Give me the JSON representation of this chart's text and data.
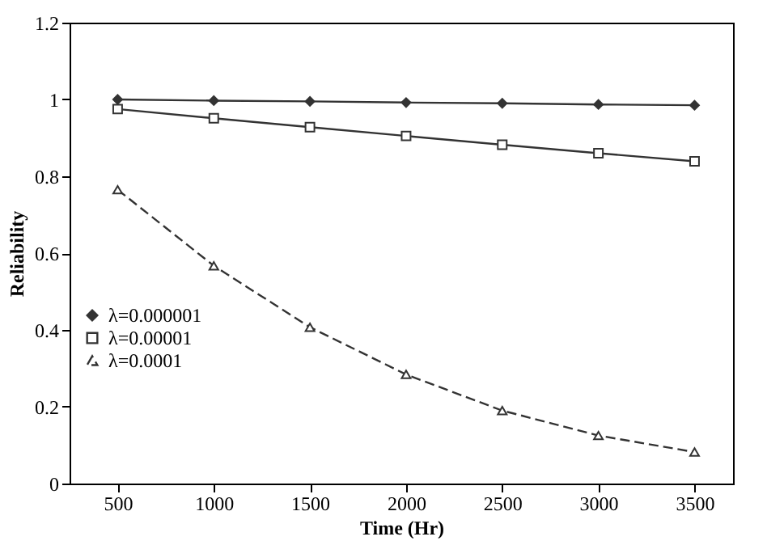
{
  "chart_data": {
    "type": "line",
    "xlabel": "Time (Hr)",
    "ylabel": "Reliability",
    "x": [
      500,
      1000,
      1500,
      2000,
      2500,
      3000,
      3500
    ],
    "series": [
      {
        "name": "λ=0.000001",
        "color": "#333333",
        "marker": "diamond",
        "line_style": "solid",
        "values": [
          1.0,
          0.997,
          0.995,
          0.992,
          0.99,
          0.987,
          0.985
        ]
      },
      {
        "name": "λ=0.00001",
        "color": "#333333",
        "marker": "square",
        "line_style": "solid",
        "values": [
          0.975,
          0.951,
          0.928,
          0.905,
          0.882,
          0.86,
          0.839
        ]
      },
      {
        "name": "λ=0.0001",
        "color": "#333333",
        "marker": "triangle",
        "line_style": "dashed",
        "values": [
          0.765,
          0.567,
          0.407,
          0.284,
          0.19,
          0.125,
          0.082
        ]
      }
    ],
    "xlim": [
      250,
      3700
    ],
    "xticks": [
      500,
      1000,
      1500,
      2000,
      2500,
      3000,
      3500
    ],
    "ylim": [
      0,
      1.2
    ],
    "yticks": [
      0,
      0.2,
      0.4,
      0.6,
      0.8,
      1,
      1.2
    ],
    "grid": false,
    "legend": "left"
  }
}
